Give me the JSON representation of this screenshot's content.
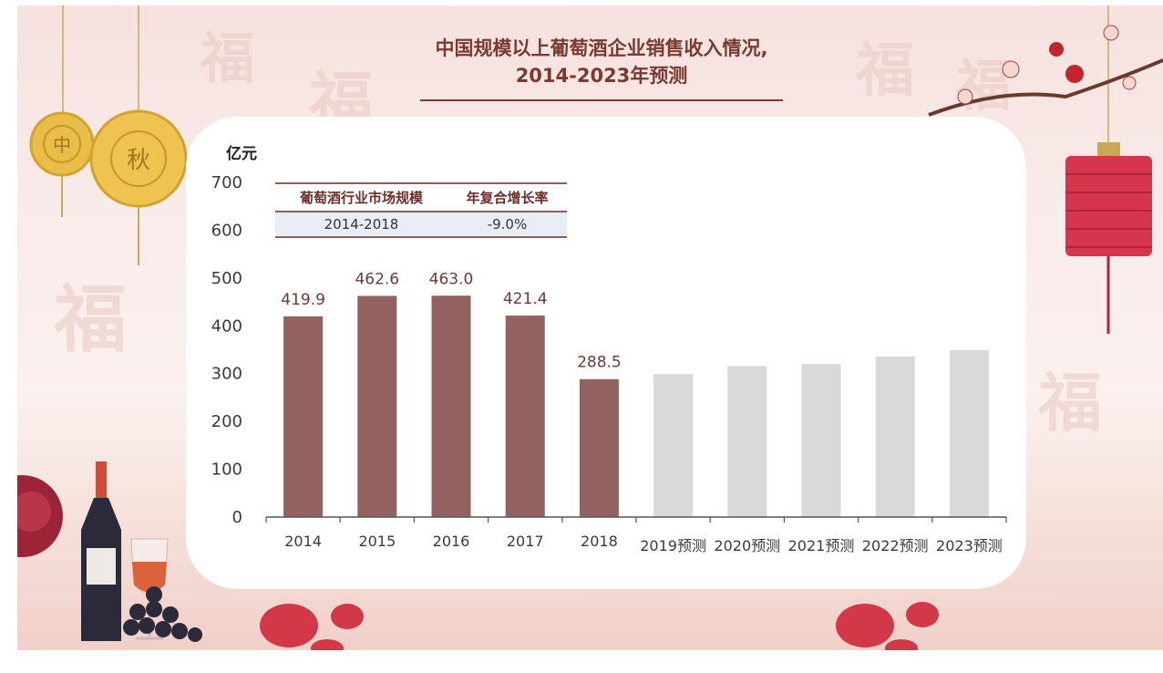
{
  "title": {
    "line1": "中国规模以上葡萄酒企业销售收入情况,",
    "line2": "2014-2023年预测"
  },
  "table": {
    "headers": [
      "葡萄酒行业市场规模",
      "年复合增长率"
    ],
    "row": [
      "2014-2018",
      "-9.0%"
    ]
  },
  "decor": {
    "mooncake_left": "中",
    "mooncake_right": "秋",
    "bg_glyphs": [
      "福",
      "福",
      "福",
      "福",
      "福",
      "福"
    ]
  },
  "colors": {
    "actual_bar": "#936260",
    "forecast_bar": "#d9d9d9",
    "title": "#7a3a32"
  },
  "chart_data": {
    "type": "bar",
    "unit": "亿元",
    "categories": [
      "2014",
      "2015",
      "2016",
      "2017",
      "2018",
      "2019预测",
      "2020预测",
      "2021预测",
      "2022预测",
      "2023预测"
    ],
    "values": [
      419.9,
      462.6,
      463.0,
      421.4,
      288.5,
      299,
      316,
      320,
      336,
      349
    ],
    "data_labels": [
      "419.9",
      "462.6",
      "463.0",
      "421.4",
      "288.5",
      "",
      "",
      "",
      "",
      ""
    ],
    "is_forecast": [
      false,
      false,
      false,
      false,
      false,
      true,
      true,
      true,
      true,
      true
    ],
    "ylim": [
      0,
      700
    ],
    "yticks": [
      0,
      100,
      200,
      300,
      400,
      500,
      600,
      700
    ],
    "grid": false,
    "legend": "none"
  }
}
